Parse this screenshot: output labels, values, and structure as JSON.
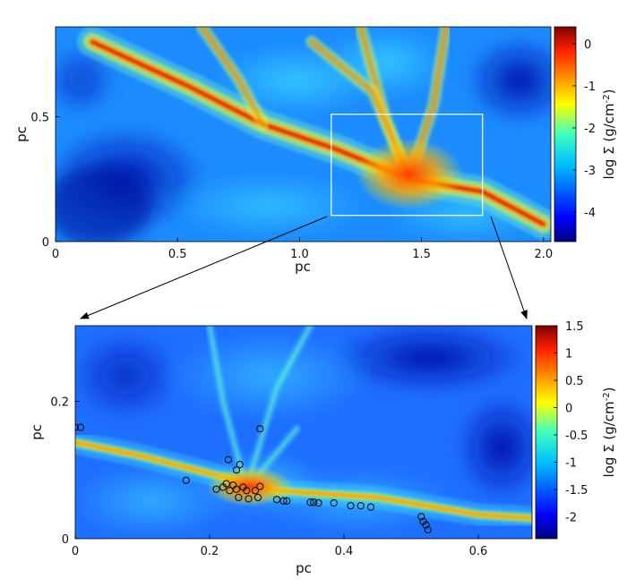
{
  "chart_data": [
    {
      "type": "heatmap",
      "xlabel": "pc",
      "ylabel": "pc",
      "xlim": [
        0,
        2.03
      ],
      "ylim": [
        0,
        0.86
      ],
      "xticks": [
        "0",
        "0.5",
        "1.0",
        "1.5",
        "2.0"
      ],
      "xtick_values": [
        0,
        0.5,
        1.0,
        1.5,
        2.0
      ],
      "yticks": [
        "0",
        "0.5"
      ],
      "ytick_values": [
        0,
        0.5
      ],
      "colorbar": {
        "label": "log Σ (g/cm",
        "label_sup": "-2",
        "label_end": ")",
        "range": [
          -4.7,
          0.4
        ],
        "ticks": [
          "0",
          "-1",
          "-2",
          "-3",
          "-4"
        ],
        "tick_values": [
          0,
          -1,
          -2,
          -3,
          -4
        ]
      },
      "inset_box": {
        "x": [
          1.13,
          1.75
        ],
        "y": [
          0.105,
          0.51
        ]
      },
      "filament": [
        [
          0.15,
          0.8
        ],
        [
          0.55,
          0.62
        ],
        [
          0.85,
          0.47
        ],
        [
          1.15,
          0.37
        ],
        [
          1.45,
          0.25
        ],
        [
          1.75,
          0.2
        ],
        [
          2.0,
          0.07
        ]
      ]
    },
    {
      "type": "heatmap",
      "xlabel": "pc",
      "ylabel": "pc",
      "xlim": [
        0,
        0.68
      ],
      "ylim": [
        0,
        0.31
      ],
      "xticks": [
        "0",
        "0.2",
        "0.4",
        "0.6"
      ],
      "xtick_values": [
        0,
        0.2,
        0.4,
        0.6
      ],
      "yticks": [
        "0",
        "0.2"
      ],
      "ytick_values": [
        0,
        0.2
      ],
      "colorbar": {
        "label": "log Σ (g/cm",
        "label_sup": "-2",
        "label_end": ")",
        "range": [
          -2.4,
          1.5
        ],
        "ticks": [
          "1.5",
          "1",
          "0.5",
          "0",
          "-0.5",
          "-1",
          "-1.5",
          "-2"
        ],
        "tick_values": [
          1.5,
          1,
          0.5,
          0,
          -0.5,
          -1,
          -1.5,
          -2
        ]
      },
      "filament": [
        [
          0.0,
          0.14
        ],
        [
          0.1,
          0.12
        ],
        [
          0.2,
          0.095
        ],
        [
          0.3,
          0.07
        ],
        [
          0.45,
          0.06
        ],
        [
          0.6,
          0.035
        ],
        [
          0.68,
          0.03
        ]
      ],
      "sinks": [
        {
          "x": 0.0,
          "y": 0.162
        },
        {
          "x": 0.008,
          "y": 0.162
        },
        {
          "x": 0.165,
          "y": 0.085
        },
        {
          "x": 0.21,
          "y": 0.072
        },
        {
          "x": 0.22,
          "y": 0.075
        },
        {
          "x": 0.225,
          "y": 0.08
        },
        {
          "x": 0.228,
          "y": 0.115
        },
        {
          "x": 0.23,
          "y": 0.07
        },
        {
          "x": 0.235,
          "y": 0.078
        },
        {
          "x": 0.24,
          "y": 0.1
        },
        {
          "x": 0.24,
          "y": 0.072
        },
        {
          "x": 0.243,
          "y": 0.06
        },
        {
          "x": 0.245,
          "y": 0.108
        },
        {
          "x": 0.25,
          "y": 0.075
        },
        {
          "x": 0.255,
          "y": 0.07
        },
        {
          "x": 0.258,
          "y": 0.058
        },
        {
          "x": 0.268,
          "y": 0.07
        },
        {
          "x": 0.272,
          "y": 0.06
        },
        {
          "x": 0.275,
          "y": 0.076
        },
        {
          "x": 0.275,
          "y": 0.16
        },
        {
          "x": 0.3,
          "y": 0.057
        },
        {
          "x": 0.31,
          "y": 0.055
        },
        {
          "x": 0.315,
          "y": 0.055
        },
        {
          "x": 0.35,
          "y": 0.053
        },
        {
          "x": 0.355,
          "y": 0.053
        },
        {
          "x": 0.362,
          "y": 0.052
        },
        {
          "x": 0.385,
          "y": 0.052
        },
        {
          "x": 0.41,
          "y": 0.048
        },
        {
          "x": 0.425,
          "y": 0.048
        },
        {
          "x": 0.44,
          "y": 0.046
        },
        {
          "x": 0.515,
          "y": 0.032
        },
        {
          "x": 0.518,
          "y": 0.025
        },
        {
          "x": 0.522,
          "y": 0.02
        },
        {
          "x": 0.525,
          "y": 0.013
        }
      ]
    }
  ]
}
